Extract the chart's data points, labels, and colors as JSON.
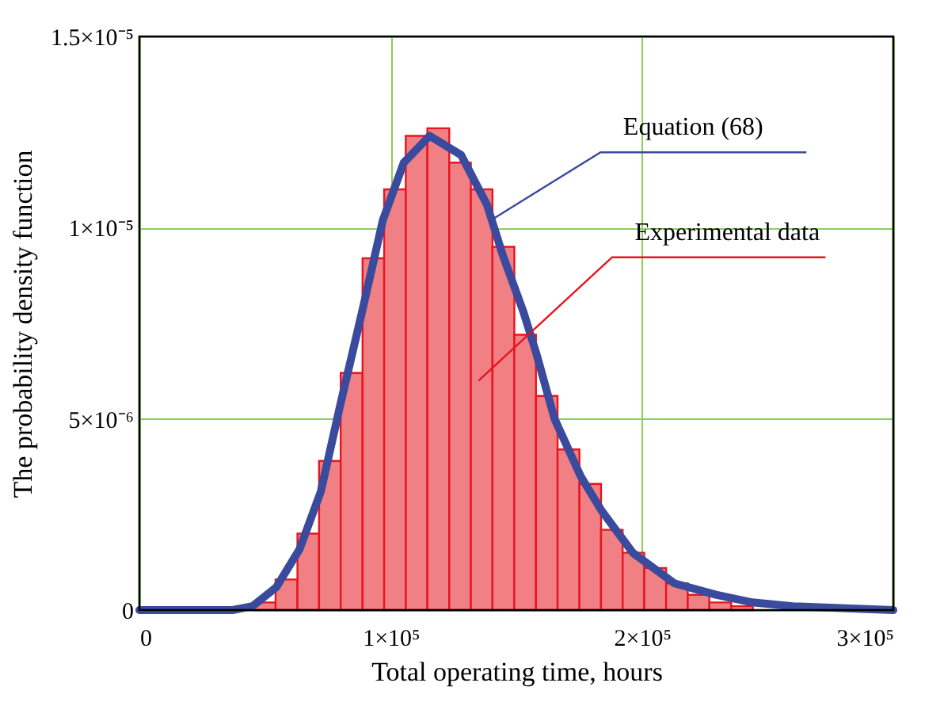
{
  "chart_data": {
    "type": "histogram",
    "xlabel": "Total operating time, hours",
    "ylabel": "The probability density function",
    "bins": [
      45600,
      54200,
      62900,
      71500,
      80100,
      88800,
      97400,
      106000,
      114600,
      123300,
      131900,
      140500,
      149200,
      157800,
      166400,
      175100,
      183700,
      192300,
      200900,
      209600,
      218200,
      226800,
      235500,
      244100
    ],
    "values": [
      2e-07,
      8e-07,
      2e-06,
      3.9e-06,
      6.2e-06,
      9.2e-06,
      1.1e-05,
      1.24e-05,
      1.26e-05,
      1.17e-05,
      1.1e-05,
      9.5e-06,
      7.2e-06,
      5.6e-06,
      4.2e-06,
      3.3e-06,
      2.1e-06,
      1.5e-06,
      1.1e-06,
      7e-07,
      4e-07,
      2e-07,
      1e-07
    ],
    "color": "#f08084",
    "series": [
      {
        "type": "line",
        "color": "#3a4a9c",
        "x": [
          0,
          30000,
          37000,
          45000,
          54500,
          63800,
          72200,
          80400,
          88600,
          96900,
          105200,
          115500,
          128000,
          138300,
          144500,
          152800,
          158000,
          165200,
          175600,
          183900,
          196300,
          212900,
          229400,
          243900,
          260000,
          300000
        ],
        "values": [
          0,
          0,
          0,
          1e-07,
          6e-07,
          1.6e-06,
          3.1e-06,
          5.5e-06,
          7.8e-06,
          1.02e-05,
          1.17e-05,
          1.24e-05,
          1.19e-05,
          1.06e-05,
          9.3e-06,
          7.8e-06,
          6.7e-06,
          5e-06,
          3.5e-06,
          2.6e-06,
          1.5e-06,
          7e-07,
          4e-07,
          2e-07,
          1e-07,
          0
        ]
      }
    ],
    "xlim": [
      0,
      300000
    ],
    "ylim": [
      0,
      1.5e-05
    ],
    "xticks": [
      0,
      {
        "value": 100000,
        "label": "1×10⁵"
      },
      {
        "value": 200000,
        "label": "2×10⁵"
      },
      {
        "value": 300000,
        "label": "3×10⁵"
      }
    ],
    "yticks": [
      0,
      {
        "value": 5e-06,
        "label": "5×10⁻⁶"
      },
      {
        "value": 1e-05,
        "label": "1×10⁻⁵"
      },
      {
        "value": 1.5e-05,
        "label": "1.5×10⁻⁵"
      }
    ],
    "grid": true,
    "annotations": [
      {
        "text": "Equation (68)",
        "x": 140000,
        "y": 1.02e-05
      },
      {
        "text": "Experimental data",
        "x": 135000,
        "y": 6e-06
      }
    ]
  }
}
